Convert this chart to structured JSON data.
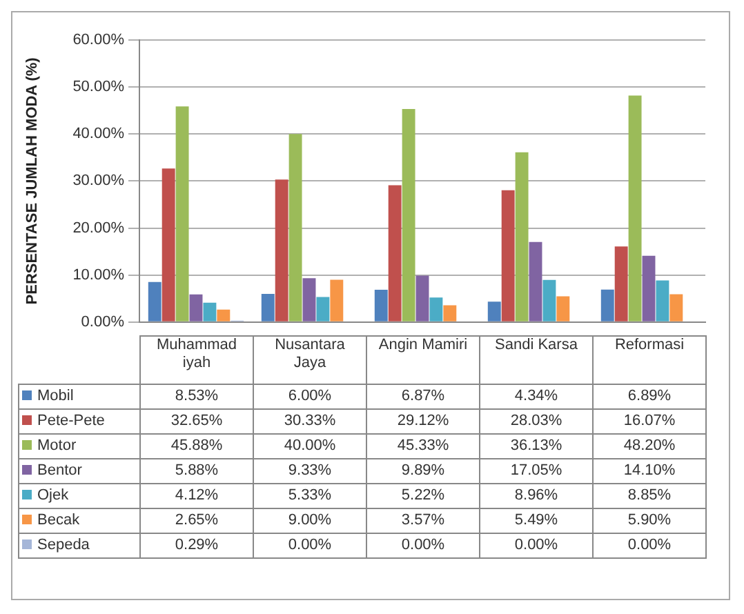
{
  "chart_data": {
    "type": "bar",
    "ylabel": "PERSENTASE JUMLAH MODA (%)",
    "categories": [
      "Muhammad iyah",
      "Nusantara Jaya",
      "Angin Mamiri",
      "Sandi Karsa",
      "Reformasi"
    ],
    "series": [
      {
        "name": "Mobil",
        "color": "#4f81bd",
        "values": [
          8.53,
          6.0,
          6.87,
          4.34,
          6.89
        ],
        "value_labels": [
          "8.53%",
          "6.00%",
          "6.87%",
          "4.34%",
          "6.89%"
        ]
      },
      {
        "name": "Pete-Pete",
        "color": "#c0504d",
        "values": [
          32.65,
          30.33,
          29.12,
          28.03,
          16.07
        ],
        "value_labels": [
          "32.65%",
          "30.33%",
          "29.12%",
          "28.03%",
          "16.07%"
        ]
      },
      {
        "name": "Motor",
        "color": "#9bbb59",
        "values": [
          45.88,
          40.0,
          45.33,
          36.13,
          48.2
        ],
        "value_labels": [
          "45.88%",
          "40.00%",
          "45.33%",
          "36.13%",
          "48.20%"
        ]
      },
      {
        "name": "Bentor",
        "color": "#8064a2",
        "values": [
          5.88,
          9.33,
          9.89,
          17.05,
          14.1
        ],
        "value_labels": [
          "5.88%",
          "9.33%",
          "9.89%",
          "17.05%",
          "14.10%"
        ]
      },
      {
        "name": "Ojek",
        "color": "#4bacc6",
        "values": [
          4.12,
          5.33,
          5.22,
          8.96,
          8.85
        ],
        "value_labels": [
          "4.12%",
          "5.33%",
          "5.22%",
          "8.96%",
          "8.85%"
        ]
      },
      {
        "name": "Becak",
        "color": "#f79646",
        "values": [
          2.65,
          9.0,
          3.57,
          5.49,
          5.9
        ],
        "value_labels": [
          "2.65%",
          "9.00%",
          "3.57%",
          "5.49%",
          "5.90%"
        ]
      },
      {
        "name": "Sepeda",
        "color": "#a5b6d8",
        "values": [
          0.29,
          0.0,
          0.0,
          0.0,
          0.0
        ],
        "value_labels": [
          "0.29%",
          "0.00%",
          "0.00%",
          "0.00%",
          "0.00%"
        ]
      }
    ],
    "ylim": [
      0,
      60
    ],
    "yticks": [
      {
        "value": 0,
        "label": "0.00%"
      },
      {
        "value": 10,
        "label": "10.00%"
      },
      {
        "value": 20,
        "label": "20.00%"
      },
      {
        "value": 30,
        "label": "30.00%"
      },
      {
        "value": 40,
        "label": "40.00%"
      },
      {
        "value": 50,
        "label": "50.00%"
      },
      {
        "value": 60,
        "label": "60.00%"
      }
    ],
    "grid": "y",
    "legend": "bottom"
  }
}
